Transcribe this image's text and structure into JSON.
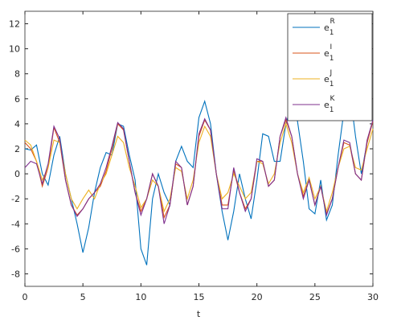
{
  "chart_data": {
    "type": "line",
    "xlabel": "t",
    "x": [
      0,
      0.5,
      1,
      1.5,
      2,
      2.5,
      3,
      3.5,
      4,
      4.5,
      5,
      5.5,
      6,
      6.5,
      7,
      7.5,
      8,
      8.5,
      9,
      9.5,
      10,
      10.5,
      11,
      11.5,
      12,
      12.5,
      13,
      13.5,
      14,
      14.5,
      15,
      15.5,
      16,
      16.5,
      17,
      17.5,
      18,
      18.5,
      19,
      19.5,
      20,
      20.5,
      21,
      21.5,
      22,
      22.5,
      23,
      23.5,
      24,
      24.5,
      25,
      25.5,
      26,
      26.5,
      27,
      27.5,
      28,
      28.5,
      29,
      29.5,
      30
    ],
    "series": [
      {
        "name": "e",
        "sub": "1",
        "sup": "R",
        "color": "#0072bd",
        "values": [
          2,
          1.9,
          2.3,
          0,
          -0.9,
          1.5,
          3,
          0,
          -2,
          -4,
          -6.3,
          -4.3,
          -1.5,
          0.5,
          1.7,
          1.5,
          4,
          3.8,
          1.5,
          -0.5,
          -6,
          -7.3,
          -2,
          0,
          -1.5,
          -2.5,
          1,
          2.2,
          1,
          0.5,
          4.5,
          5.8,
          4,
          0,
          -3,
          -5.3,
          -3,
          0,
          -2,
          -3.6,
          -0.5,
          3.2,
          3,
          1,
          1,
          4,
          5.5,
          4.2,
          1,
          -2.8,
          -3.2,
          -0.5,
          -3.7,
          -2.5,
          1.5,
          5,
          6.7,
          3,
          0,
          2.5,
          4.3
        ]
      },
      {
        "name": "e",
        "sub": "1",
        "sup": "I",
        "color": "#d95319",
        "values": [
          2.5,
          2,
          1,
          -1,
          0.5,
          3.7,
          2.5,
          -0.5,
          -2.5,
          -3.3,
          -2.8,
          -2,
          -1.5,
          -1,
          0.2,
          2,
          4,
          3.5,
          1,
          -1.5,
          -3,
          -2,
          0,
          -1,
          -3.5,
          -2.5,
          0.8,
          0.5,
          -2.5,
          -1,
          3,
          4.3,
          3.5,
          0,
          -2.5,
          -2.5,
          0.3,
          -1.5,
          -2.8,
          -2,
          1,
          1,
          -1,
          -0.5,
          3,
          4.3,
          3,
          0,
          -1.8,
          -0.5,
          -2.5,
          -1,
          -3.2,
          -2,
          0.5,
          2.5,
          2.3,
          0,
          -0.5,
          2.5,
          4.2
        ]
      },
      {
        "name": "e",
        "sub": "1",
        "sup": "J",
        "color": "#edb120",
        "values": [
          2.7,
          2.3,
          1,
          -0.5,
          0.5,
          2.7,
          2.5,
          0,
          -2,
          -2.8,
          -2,
          -1.3,
          -2,
          -0.8,
          0,
          1.5,
          3,
          2.5,
          0.5,
          -1,
          -2.7,
          -2,
          -0.5,
          -1,
          -3,
          -2,
          0.5,
          0.2,
          -2,
          -0.5,
          2.5,
          3.8,
          3,
          0,
          -2,
          -1.5,
          0,
          -1,
          -2,
          -1.5,
          1,
          0.8,
          -0.8,
          0,
          2.5,
          4,
          2.5,
          0,
          -1.5,
          -0.3,
          -2,
          -1,
          -3,
          -1.5,
          0.5,
          2,
          2.2,
          0.5,
          0.3,
          2,
          3.6
        ]
      },
      {
        "name": "e",
        "sub": "1",
        "sup": "K",
        "color": "#7e2f8e",
        "values": [
          0.5,
          1,
          0.8,
          -0.8,
          0.8,
          3.8,
          2.8,
          -0.5,
          -2.5,
          -3.4,
          -2.8,
          -2,
          -1.5,
          -0.8,
          0.5,
          2.2,
          4.1,
          3.6,
          1,
          -1.5,
          -3.3,
          -2,
          0,
          -1,
          -4,
          -2.5,
          1,
          0.5,
          -2.5,
          -1,
          3.2,
          4.4,
          3.5,
          0,
          -2.8,
          -2.8,
          0.5,
          -1.5,
          -3,
          -2,
          1.2,
          1,
          -1,
          -0.5,
          3,
          4.5,
          3,
          0,
          -2,
          -0.5,
          -2.5,
          -1,
          -3.3,
          -2,
          0.5,
          2.7,
          2.5,
          0,
          -0.5,
          2.7,
          4.3
        ]
      }
    ],
    "xlim": [
      0,
      30
    ],
    "xticks": [
      0,
      5,
      10,
      15,
      20,
      25,
      30
    ],
    "ylim": [
      -9,
      13
    ],
    "yticks": [
      -8,
      -6,
      -4,
      -2,
      0,
      2,
      4,
      6,
      8,
      10,
      12
    ],
    "legend": "top-right"
  }
}
